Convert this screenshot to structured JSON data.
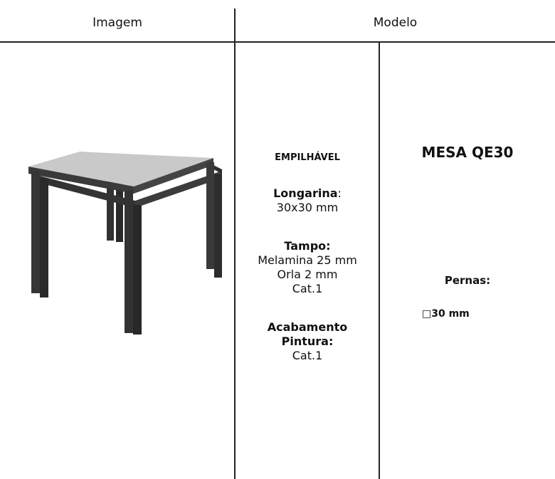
{
  "header": {
    "columns": [
      "Imagem",
      "Modelo"
    ]
  },
  "description": {
    "stackable": "EMPILHÁVEL",
    "longarina_label": "Longarina",
    "longarina_colon": ":",
    "longarina_value": "30x30 mm",
    "tampo_label": "Tampo:",
    "tampo_lines": [
      "Melamina 25 mm",
      "Orla 2 mm",
      "Cat.1"
    ],
    "finish_label": [
      "Acabamento",
      "Pintura:"
    ],
    "finish_value": "Cat.1"
  },
  "model": {
    "name": "MESA QE30",
    "legs_label": "Pernas:",
    "legs_value": "□30 mm"
  }
}
